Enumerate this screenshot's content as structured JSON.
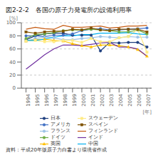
{
  "chart_data": {
    "type": "line",
    "title": "図2-2-2　各国の原子力発電所の設備利用率",
    "caption": "資料：平成20年版原子力白書より環境省作成",
    "xlabel": "[年]",
    "ylabel": "[%]",
    "x": [
      1994,
      1995,
      1996,
      1997,
      1998,
      1999,
      2000,
      2001,
      2002,
      2003,
      2004,
      2005,
      2006,
      2007
    ],
    "xlim": [
      1993.5,
      2007.5
    ],
    "xticks": [
      1994,
      1995,
      1996,
      1997,
      1998,
      1999,
      2000,
      2001,
      2002,
      2003,
      2004,
      2005,
      2006,
      2007
    ],
    "ylim": [
      0,
      100
    ],
    "yticks": [
      0,
      20,
      40,
      60,
      80,
      100
    ],
    "grid": true,
    "legend": "bottom",
    "series": [
      {
        "name": "日本",
        "color": "#1f3f7f",
        "marker": "circle",
        "values": [
          74,
          80,
          83,
          84,
          84,
          81,
          81,
          81,
          57,
          70,
          69,
          70,
          70,
          63
        ]
      },
      {
        "name": "アメリカ",
        "color": "#4472c4",
        "marker": "circle",
        "values": [
          80,
          80,
          79,
          81,
          81,
          83,
          88,
          90,
          91,
          89,
          89,
          90,
          91,
          92
        ]
      },
      {
        "name": "フランス",
        "color": "#9dc3e6",
        "marker": "circle",
        "values": [
          72,
          76,
          78,
          77,
          74,
          74,
          76,
          77,
          79,
          78,
          77,
          79,
          78,
          78
        ]
      },
      {
        "name": "ドイツ",
        "color": "#70ad47",
        "marker": "circle",
        "values": [
          76,
          82,
          83,
          85,
          88,
          89,
          89,
          90,
          89,
          88,
          86,
          86,
          89,
          83
        ]
      },
      {
        "name": "英国",
        "color": "#ffc000",
        "marker": "triangle",
        "values": [
          72,
          74,
          75,
          73,
          72,
          68,
          65,
          63,
          66,
          66,
          65,
          63,
          59,
          49
        ]
      },
      {
        "name": "スウェーデン",
        "color": "#ffeb84",
        "marker": "square",
        "values": [
          72,
          73,
          71,
          71,
          73,
          73,
          70,
          76,
          71,
          71,
          77,
          79,
          90,
          55
        ]
      },
      {
        "name": "スペイン",
        "color": "#7f5200",
        "marker": "square",
        "values": [
          86,
          84,
          86,
          87,
          87,
          90,
          89,
          92,
          89,
          88,
          90,
          90,
          90,
          86
        ]
      },
      {
        "name": "フィンランド",
        "color": "#c55a11",
        "marker": "none",
        "values": [
          90,
          93,
          91,
          90,
          96,
          93,
          93,
          94,
          95,
          92,
          93,
          95,
          95,
          96
        ]
      },
      {
        "name": "インド",
        "color": "#7030a0",
        "marker": "none",
        "values": [
          29,
          40,
          51,
          60,
          66,
          66,
          65,
          67,
          69,
          70,
          63,
          63,
          60,
          49
        ]
      },
      {
        "name": "中国",
        "color": "#00b0f0",
        "marker": "none",
        "values": [
          73,
          73,
          75,
          78,
          80,
          80,
          82,
          82,
          84,
          84,
          84,
          85,
          83,
          82
        ]
      }
    ]
  }
}
